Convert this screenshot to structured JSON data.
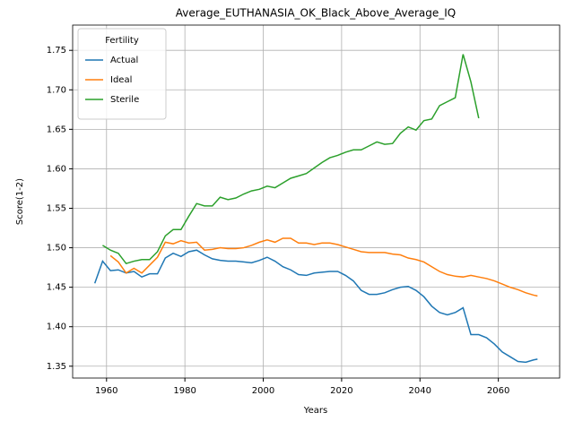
{
  "chart_data": {
    "type": "line",
    "title": "Average_EUTHANASIA_OK_Black_Above_Average_IQ",
    "x_label": "Years",
    "y_label": "Score(1-2)",
    "legend_title": "Fertility",
    "legend": "upper left",
    "grid": true,
    "x": [
      1957,
      1959,
      1961,
      1963,
      1965,
      1967,
      1969,
      1971,
      1973,
      1975,
      1977,
      1979,
      1981,
      1983,
      1985,
      1987,
      1989,
      1991,
      1993,
      1995,
      1997,
      1999,
      2001,
      2003,
      2005,
      2007,
      2009,
      2011,
      2013,
      2015,
      2017,
      2019,
      2021,
      2023,
      2025,
      2027,
      2029,
      2031,
      2033,
      2035,
      2037,
      2039,
      2041,
      2043,
      2045,
      2047,
      2049,
      2051,
      2053,
      2055,
      2057,
      2059,
      2061,
      2063,
      2065,
      2067,
      2069,
      2070
    ],
    "series": [
      {
        "name": "Actual",
        "color": "#1f77b4",
        "values": [
          1.455,
          1.483,
          1.471,
          1.472,
          1.468,
          1.47,
          1.463,
          1.467,
          1.467,
          1.487,
          1.493,
          1.489,
          1.495,
          1.497,
          1.491,
          1.486,
          1.484,
          1.483,
          1.483,
          1.482,
          1.481,
          1.484,
          1.488,
          1.483,
          1.476,
          1.472,
          1.466,
          1.465,
          1.468,
          1.469,
          1.47,
          1.47,
          1.465,
          1.458,
          1.446,
          1.441,
          1.441,
          1.443,
          1.447,
          1.45,
          1.451,
          1.446,
          1.438,
          1.426,
          1.418,
          1.415,
          1.418,
          1.424,
          1.39,
          1.39,
          1.386,
          1.378,
          1.368,
          1.362,
          1.356,
          1.355,
          1.358,
          1.359
        ]
      },
      {
        "name": "Ideal",
        "color": "#ff7f0e",
        "values": [
          null,
          null,
          1.49,
          1.482,
          1.468,
          1.474,
          1.468,
          1.478,
          1.488,
          1.507,
          1.505,
          1.509,
          1.506,
          1.507,
          1.497,
          1.498,
          1.5,
          1.499,
          1.499,
          1.5,
          1.503,
          1.507,
          1.51,
          1.507,
          1.512,
          1.512,
          1.506,
          1.506,
          1.504,
          1.506,
          1.506,
          1.504,
          1.501,
          1.498,
          1.495,
          1.494,
          1.494,
          1.494,
          1.492,
          1.491,
          1.487,
          1.485,
          1.482,
          1.476,
          1.47,
          1.466,
          1.464,
          1.463,
          1.465,
          1.463,
          1.461,
          1.458,
          1.454,
          1.45,
          1.447,
          1.443,
          1.44,
          1.439
        ]
      },
      {
        "name": "Sterile",
        "color": "#2ca02c",
        "values": [
          null,
          1.503,
          1.497,
          1.493,
          1.48,
          1.483,
          1.485,
          1.485,
          1.495,
          1.515,
          1.523,
          1.523,
          1.54,
          1.556,
          1.553,
          1.553,
          1.564,
          1.561,
          1.563,
          1.568,
          1.572,
          1.574,
          1.578,
          1.576,
          1.582,
          1.588,
          1.591,
          1.594,
          1.601,
          1.608,
          1.614,
          1.617,
          1.621,
          1.624,
          1.624,
          1.629,
          1.634,
          1.631,
          1.632,
          1.645,
          1.653,
          1.649,
          1.661,
          1.663,
          1.68,
          1.685,
          1.69,
          1.745,
          1.71,
          1.664,
          null,
          null,
          null,
          null,
          null,
          null,
          null,
          null
        ]
      }
    ],
    "xlim": [
      1951.35,
      2075.65
    ],
    "xticks": [
      1960,
      1980,
      2000,
      2020,
      2040,
      2060
    ],
    "ylim": [
      1.335,
      1.782
    ],
    "yticks": [
      1.35,
      {
        "value": 1.4,
        "label": "1.40"
      },
      1.45,
      {
        "value": 1.5,
        "label": "1.50"
      },
      1.55,
      {
        "value": 1.6,
        "label": "1.60"
      },
      1.65,
      {
        "value": 1.7,
        "label": "1.70"
      },
      1.75
    ]
  }
}
